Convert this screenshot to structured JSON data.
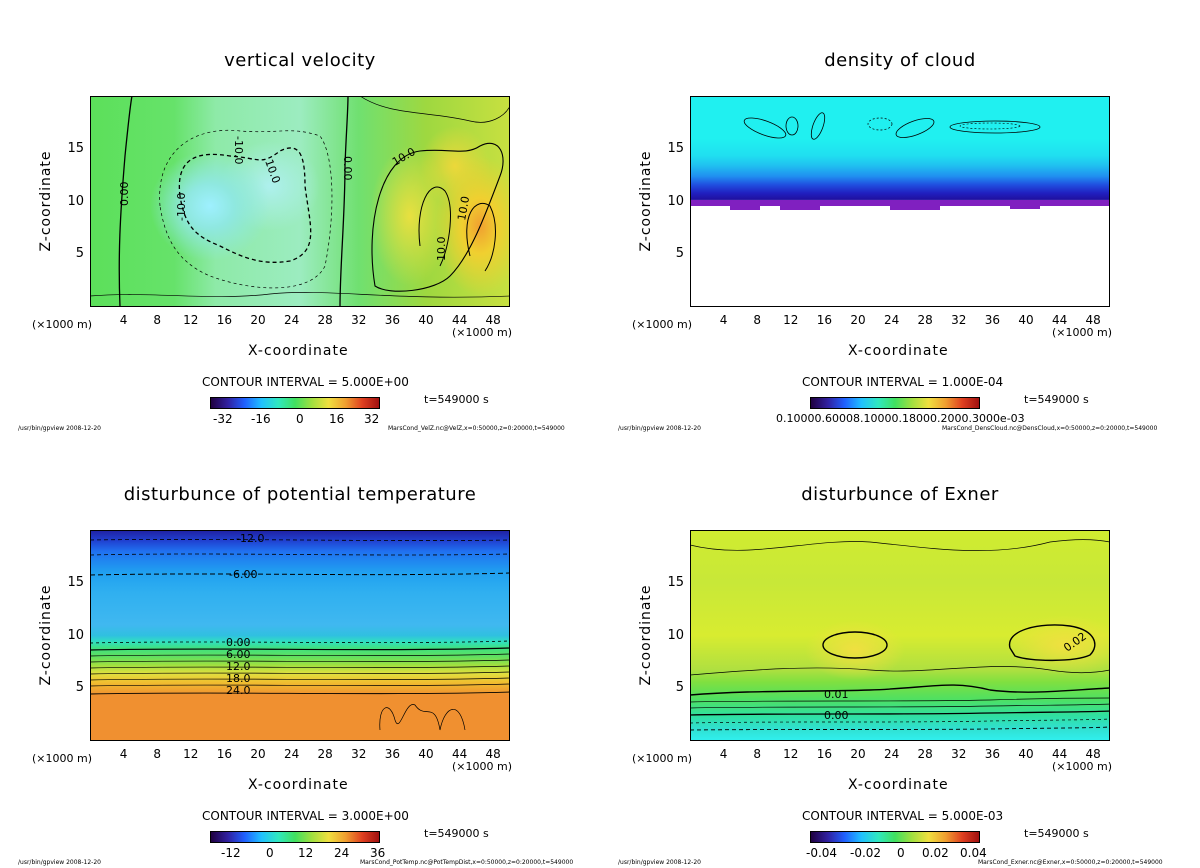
{
  "chart_data": [
    {
      "type": "heatmap",
      "title": "vertical velocity",
      "xlabel": "X-coordinate",
      "ylabel": "Z-coordinate",
      "x_unit_left": "(×1000 m)",
      "x_unit_right": "(×1000 m)",
      "xlim": [
        0,
        50
      ],
      "ylim": [
        0,
        20
      ],
      "x_ticks": [
        "4",
        "8",
        "12",
        "16",
        "20",
        "24",
        "28",
        "32",
        "36",
        "40",
        "44",
        "48"
      ],
      "y_ticks": [
        "5",
        "10",
        "15"
      ],
      "contour_labels": [
        "0.00",
        "-10.0",
        "10.0",
        "-10.0",
        "0.00",
        "10.0",
        "10.0",
        "10.0"
      ],
      "contour_interval": "CONTOUR INTERVAL = 5.000E+00",
      "colorbar_ticks": [
        "-32",
        "-16",
        "0",
        "16",
        "32"
      ],
      "time_label": "t=549000 s",
      "footer_left": "/usr/bin/gpview 2008-12-20",
      "footer_right": "MarsCond_VelZ.nc@VelZ,x=0:50000,z=0:20000,t=549000"
    },
    {
      "type": "heatmap",
      "title": "density of cloud",
      "xlabel": "X-coordinate",
      "ylabel": "Z-coordinate",
      "x_unit_left": "(×1000 m)",
      "x_unit_right": "(×1000 m)",
      "xlim": [
        0,
        50
      ],
      "ylim": [
        0,
        20
      ],
      "x_ticks": [
        "4",
        "8",
        "12",
        "16",
        "20",
        "24",
        "28",
        "32",
        "36",
        "40",
        "44",
        "48"
      ],
      "y_ticks": [
        "5",
        "10",
        "15"
      ],
      "contour_labels": [],
      "contour_interval": "CONTOUR INTERVAL = 1.000E-04",
      "colorbar_ticks": [
        "0.10000.60008.10000.18000.2000.3000e-03"
      ],
      "time_label": "t=549000 s",
      "footer_left": "/usr/bin/gpview 2008-12-20",
      "footer_right": "MarsCond_DensCloud.nc@DensCloud,x=0:50000,z=0:20000,t=549000"
    },
    {
      "type": "heatmap",
      "title": "disturbunce of potential temperature",
      "xlabel": "X-coordinate",
      "ylabel": "Z-coordinate",
      "x_unit_left": "(×1000 m)",
      "x_unit_right": "(×1000 m)",
      "xlim": [
        0,
        50
      ],
      "ylim": [
        0,
        20
      ],
      "x_ticks": [
        "4",
        "8",
        "12",
        "16",
        "20",
        "24",
        "28",
        "32",
        "36",
        "40",
        "44",
        "48"
      ],
      "y_ticks": [
        "5",
        "10",
        "15"
      ],
      "contour_labels": [
        "-12.0",
        "-6.00",
        "0.00",
        "6.00",
        "12.0",
        "18.0",
        "24.0"
      ],
      "contour_interval": "CONTOUR INTERVAL = 3.000E+00",
      "colorbar_ticks": [
        "-12",
        "0",
        "12",
        "24",
        "36"
      ],
      "time_label": "t=549000 s",
      "footer_left": "/usr/bin/gpview 2008-12-20",
      "footer_right": "MarsCond_PotTemp.nc@PotTempDist,x=0:50000,z=0:20000,t=549000"
    },
    {
      "type": "heatmap",
      "title": "disturbunce of Exner",
      "xlabel": "X-coordinate",
      "ylabel": "Z-coordinate",
      "x_unit_left": "(×1000 m)",
      "x_unit_right": "(×1000 m)",
      "xlim": [
        0,
        50
      ],
      "ylim": [
        0,
        20
      ],
      "x_ticks": [
        "4",
        "8",
        "12",
        "16",
        "20",
        "24",
        "28",
        "32",
        "36",
        "40",
        "44",
        "48"
      ],
      "y_ticks": [
        "5",
        "10",
        "15"
      ],
      "contour_labels": [
        "0.01",
        "0.00",
        "0.02"
      ],
      "contour_interval": "CONTOUR INTERVAL = 5.000E-03",
      "colorbar_ticks": [
        "-0.04",
        "-0.02",
        "0",
        "0.02",
        "0.04"
      ],
      "time_label": "t=549000 s",
      "footer_left": "/usr/bin/gpview 2008-12-20",
      "footer_right": "MarsCond_Exner.nc@Exner,x=0:50000,z=0:20000,t=549000"
    }
  ]
}
